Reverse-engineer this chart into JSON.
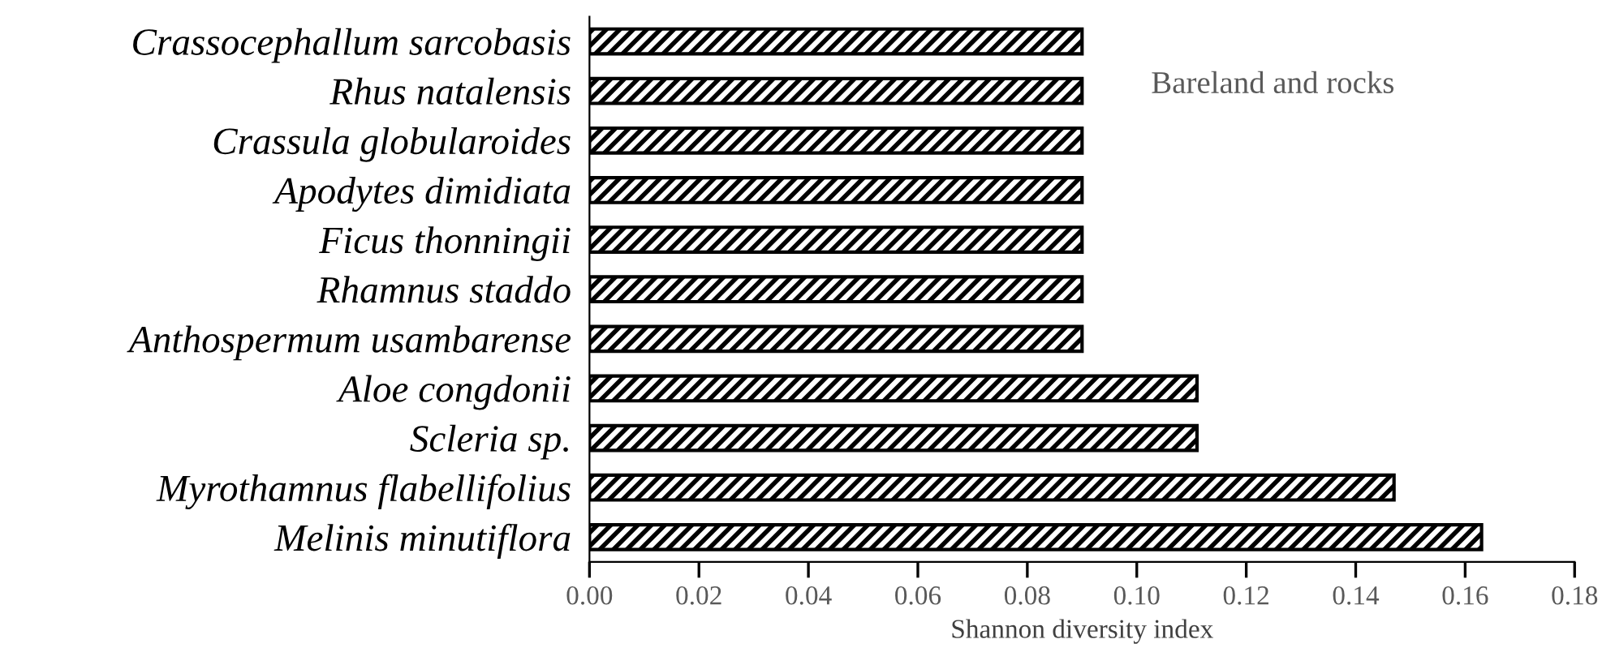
{
  "chart_data": {
    "type": "bar",
    "orientation": "horizontal",
    "xlabel": "Shannon diversity index",
    "categories": [
      "Crassocephallum sarcobasis",
      "Rhus natalensis",
      "Crassula globularoides",
      "Apodytes dimidiata",
      "Ficus thonningii",
      "Rhamnus staddo",
      "Anthospermum usambarense",
      "Aloe congdonii",
      "Scleria sp.",
      "Myrothamnus flabellifolius",
      "Melinis minutiflora"
    ],
    "values": [
      0.09,
      0.09,
      0.09,
      0.09,
      0.09,
      0.09,
      0.09,
      0.111,
      0.111,
      0.147,
      0.163
    ],
    "color": "#000000",
    "xlim": [
      0,
      0.18
    ],
    "xticks": [
      {
        "value": 0,
        "label": "0.00"
      },
      {
        "value": 0.02,
        "label": "0.02"
      },
      {
        "value": 0.04,
        "label": "0.04"
      },
      {
        "value": 0.06,
        "label": "0.06"
      },
      {
        "value": 0.08,
        "label": "0.08"
      },
      {
        "value": 0.1,
        "label": "0.10"
      },
      {
        "value": 0.12,
        "label": "0.12"
      },
      {
        "value": 0.14,
        "label": "0.14"
      },
      {
        "value": 0.16,
        "label": "0.16"
      },
      {
        "value": 0.18,
        "label": "0.18"
      }
    ],
    "annotations": [
      "Bareland and rocks"
    ],
    "grid": false
  }
}
